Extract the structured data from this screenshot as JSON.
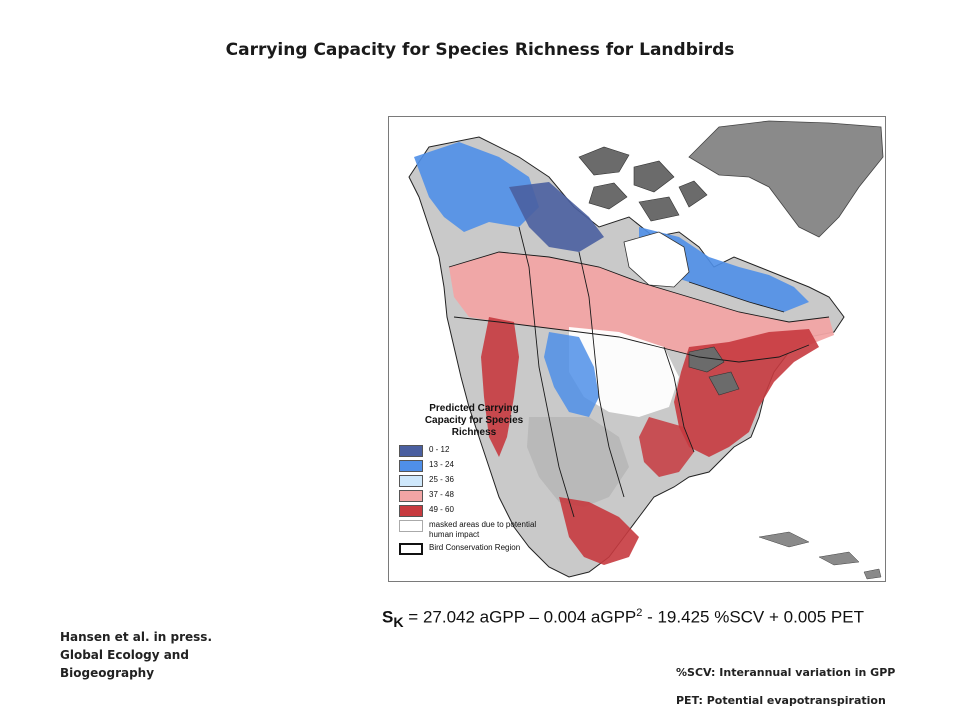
{
  "slide": {
    "title": "Carrying Capacity for Species Richness for Landbirds",
    "citation": [
      "Hansen et al. in press.",
      "Global Ecology and",
      "Biogeography"
    ],
    "notes": {
      "scv": "%SCV: Interannual variation in GPP",
      "pet": "PET: Potential evapotranspiration"
    }
  },
  "formula": {
    "symbol": "S",
    "subscript": "K",
    "part1": " = 27.042 aGPP – 0.004 aGPP",
    "superscript": "2",
    "part2": " - 19.425 %SCV + 0.005 PET"
  },
  "map": {
    "legend_title": [
      "Predicted Carrying",
      "Capacity for Species",
      "Richness"
    ],
    "legend_items": [
      {
        "label": "0 - 12",
        "color": "#4a5fa0"
      },
      {
        "label": "13 - 24",
        "color": "#4f8fe8"
      },
      {
        "label": "25 - 36",
        "color": "#cfe8fb"
      },
      {
        "label": "37 - 48",
        "color": "#f2a5a5"
      },
      {
        "label": "49 - 60",
        "color": "#c73a3f"
      },
      {
        "label": "masked areas due to potential human impact",
        "color": "#ffffff"
      },
      {
        "label": "Bird Conservation Region",
        "color": "#ffffff"
      }
    ],
    "colors": {
      "greenland": "#8a8a8a",
      "masked_gray": "#b8b8b8",
      "dark_gray": "#6b6b6b",
      "ocean": "#ffffff"
    }
  }
}
